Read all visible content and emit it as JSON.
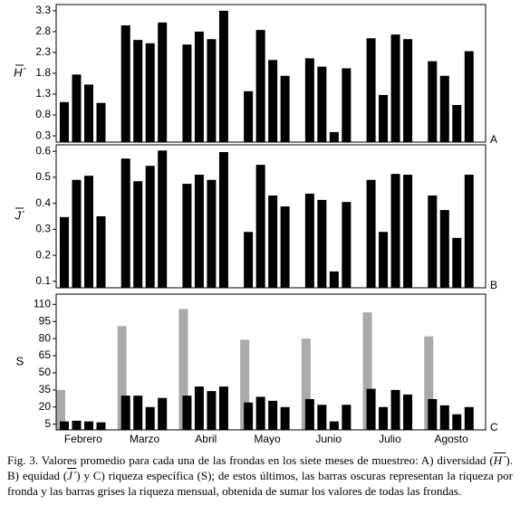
{
  "chart_data": [
    {
      "type": "bar",
      "ylabel": "H´",
      "panel_label": "A",
      "ylim": [
        0.15,
        3.45
      ],
      "yticks": [
        0.3,
        0.8,
        1.3,
        1.8,
        2.3,
        2.8,
        3.3
      ],
      "series": [
        {
          "color": "#000000",
          "values": [
            1.11,
            2.95,
            2.49,
            1.37,
            2.16,
            2.64,
            2.09
          ]
        },
        {
          "color": "#000000",
          "values": [
            1.77,
            2.6,
            2.8,
            2.84,
            1.96,
            1.28,
            1.74
          ]
        },
        {
          "color": "#000000",
          "values": [
            1.53,
            2.52,
            2.62,
            2.12,
            0.39,
            2.73,
            1.04
          ]
        },
        {
          "color": "#000000",
          "values": [
            1.09,
            3.02,
            3.3,
            1.74,
            1.92,
            2.62,
            2.33
          ]
        }
      ]
    },
    {
      "type": "bar",
      "ylabel": "J´",
      "panel_label": "B",
      "ylim": [
        0.075,
        0.625
      ],
      "yticks": [
        0.1,
        0.2,
        0.3,
        0.4,
        0.5,
        0.6
      ],
      "series": [
        {
          "color": "#000000",
          "values": [
            0.347,
            0.572,
            0.475,
            0.29,
            0.437,
            0.49,
            0.43
          ]
        },
        {
          "color": "#000000",
          "values": [
            0.49,
            0.485,
            0.51,
            0.548,
            0.413,
            0.29,
            0.374
          ]
        },
        {
          "color": "#000000",
          "values": [
            0.506,
            0.544,
            0.49,
            0.43,
            0.138,
            0.513,
            0.267
          ]
        },
        {
          "color": "#000000",
          "values": [
            0.35,
            0.603,
            0.597,
            0.388,
            0.405,
            0.51,
            0.51
          ]
        }
      ]
    },
    {
      "type": "bar",
      "ylabel": "S",
      "panel_label": "C",
      "ylim": [
        0,
        119
      ],
      "yticks": [
        5,
        20,
        35,
        50,
        65,
        80,
        95,
        110
      ],
      "categories": [
        "Febrero",
        "Marzo",
        "Abril",
        "Mayo",
        "Junio",
        "Julio",
        "Agosto"
      ],
      "series": [
        {
          "color": "#aaaaaa",
          "values": [
            35,
            91,
            106,
            79,
            80,
            103,
            82
          ]
        },
        {
          "color": "#000000",
          "values": [
            7.4,
            30,
            30,
            24,
            27,
            36,
            27
          ]
        },
        {
          "color": "#000000",
          "values": [
            8,
            30,
            38,
            29,
            22,
            20,
            21.5
          ]
        },
        {
          "color": "#000000",
          "values": [
            7.4,
            20,
            34,
            25.5,
            7.4,
            35,
            13.7
          ]
        },
        {
          "color": "#000000",
          "values": [
            6.6,
            28,
            38,
            20,
            22,
            31,
            20
          ]
        }
      ]
    }
  ],
  "caption": [
    "Fig. 3. Valores promedio para cada una de las frondas en los siete meses de muestreo: A) diversidad (",
    "H´",
    "). B) equidad (",
    "J´",
    ") y C) riqueza específica (S); de estos últimos, las barras oscuras representan la riqueza por fronda y las barras grises la riqueza mensual, obtenida de sumar los valores de todas las frondas."
  ]
}
